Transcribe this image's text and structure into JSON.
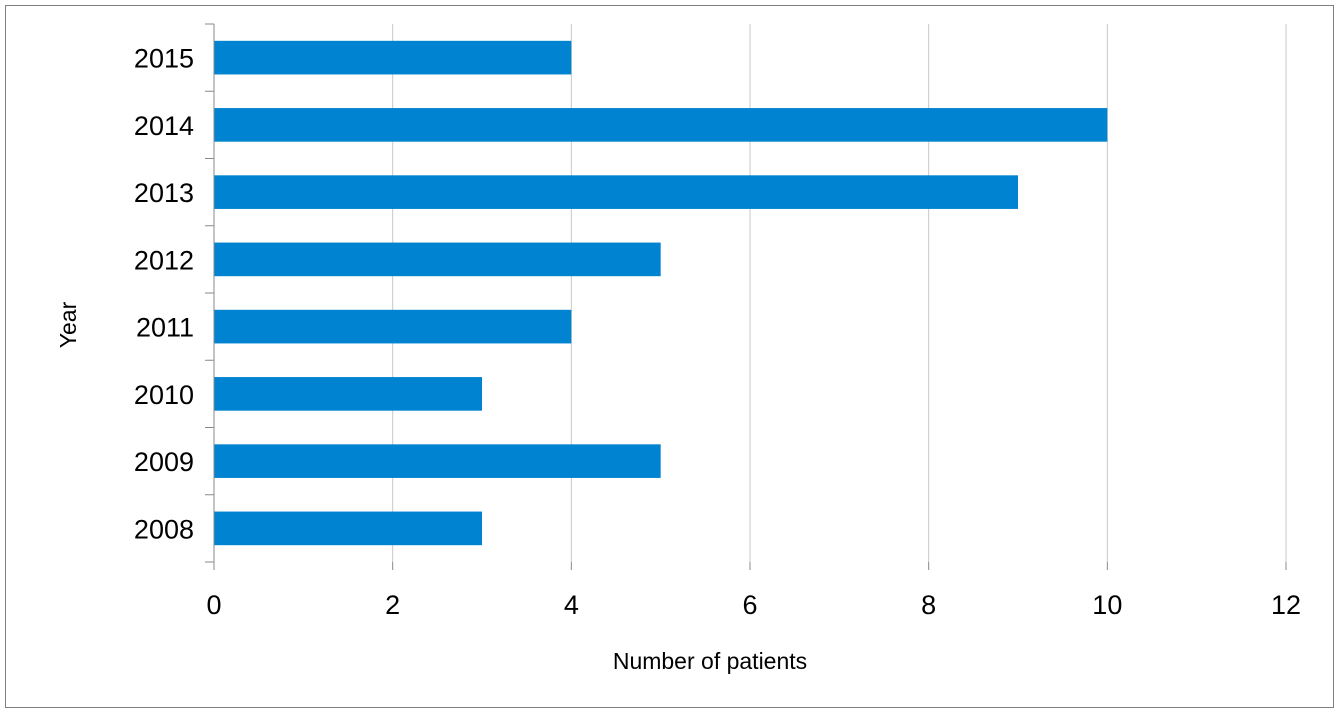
{
  "chart_data": {
    "type": "bar",
    "orientation": "horizontal",
    "categories": [
      "2008",
      "2009",
      "2010",
      "2011",
      "2012",
      "2013",
      "2014",
      "2015"
    ],
    "values": [
      3,
      5,
      3,
      4,
      5,
      9,
      10,
      4
    ],
    "xlabel": "Number of patients",
    "ylabel": "Year",
    "xlim": [
      0,
      12
    ],
    "xticks": [
      "0",
      "2",
      "4",
      "6",
      "8",
      "10",
      "12"
    ],
    "grid": "vertical",
    "legend": "none",
    "colors": {
      "bar": "#0083D0",
      "grid": "#c8c8c8",
      "axis": "#888888"
    }
  }
}
